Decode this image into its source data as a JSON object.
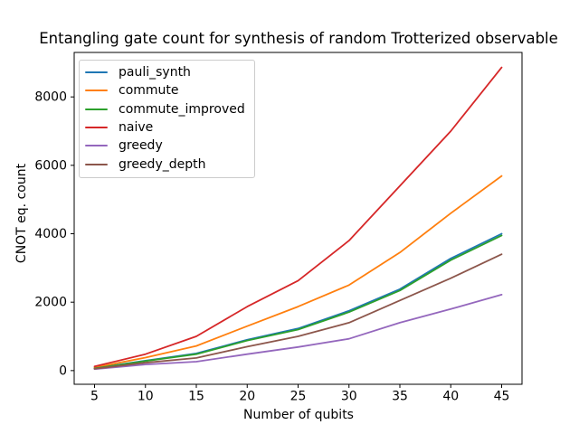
{
  "figure": {
    "background": "#ffffff",
    "axes_edge_color": "#000000",
    "legend_border_color": "#cccccc"
  },
  "chart_data": {
    "type": "line",
    "title": "Entangling gate count for synthesis of random Trotterized observable",
    "xlabel": "Number of qubits",
    "ylabel": "CNOT eq. count",
    "x": [
      5,
      10,
      15,
      20,
      25,
      30,
      35,
      40,
      45
    ],
    "xtick_labels": [
      "5",
      "10",
      "15",
      "20",
      "25",
      "30",
      "35",
      "40",
      "45"
    ],
    "ytick_values": [
      0,
      2000,
      4000,
      6000,
      8000
    ],
    "ytick_labels": [
      "0",
      "2000",
      "4000",
      "6000",
      "8000"
    ],
    "xlim": [
      3,
      47
    ],
    "ylim": [
      -400,
      9300
    ],
    "grid": false,
    "legend_position": "upper left",
    "series": [
      {
        "name": "pauli_synth",
        "color": "#1f77b4",
        "values": [
          70,
          290,
          500,
          900,
          1230,
          1750,
          2380,
          3280,
          4000
        ]
      },
      {
        "name": "commute",
        "color": "#ff7f0e",
        "values": [
          90,
          380,
          720,
          1300,
          1870,
          2500,
          3450,
          4600,
          5690
        ]
      },
      {
        "name": "commute_improved",
        "color": "#2ca02c",
        "values": [
          65,
          280,
          480,
          880,
          1200,
          1710,
          2340,
          3230,
          3950
        ]
      },
      {
        "name": "naive",
        "color": "#d62728",
        "values": [
          120,
          480,
          1000,
          1870,
          2630,
          3800,
          5400,
          7000,
          8860
        ]
      },
      {
        "name": "greedy",
        "color": "#9467bd",
        "values": [
          45,
          180,
          260,
          480,
          690,
          930,
          1400,
          1800,
          2220
        ]
      },
      {
        "name": "greedy_depth",
        "color": "#8c564b",
        "values": [
          55,
          230,
          370,
          700,
          1000,
          1400,
          2050,
          2700,
          3400
        ]
      }
    ]
  }
}
